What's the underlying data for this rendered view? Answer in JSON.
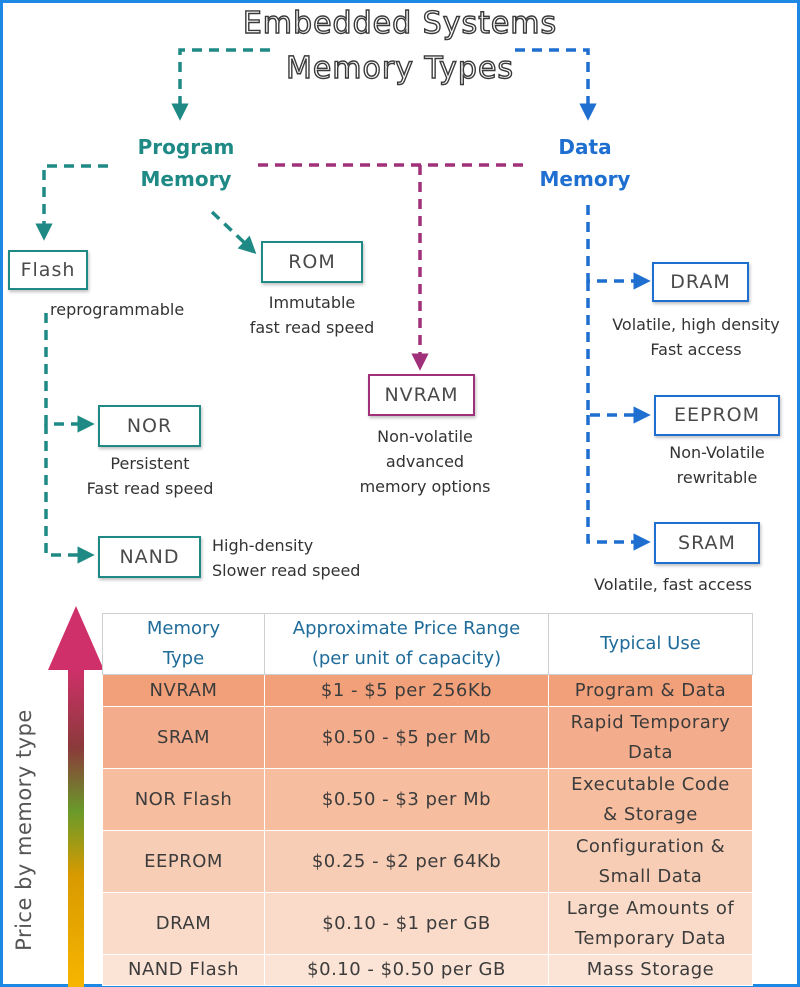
{
  "title": {
    "line1": "Embedded Systems",
    "line2": "Memory Types"
  },
  "categories": {
    "program": {
      "line1": "Program",
      "line2": "Memory",
      "color": "#1f8a85"
    },
    "nvram_branch": {
      "color": "#a0307a"
    },
    "data": {
      "line1": "Data",
      "line2": "Memory",
      "color": "#1e6fd0"
    }
  },
  "nodes": {
    "flash": {
      "label": "Flash",
      "desc": "reprogrammable"
    },
    "rom": {
      "label": "ROM",
      "desc_line1": "Immutable",
      "desc_line2": "fast read speed"
    },
    "nor": {
      "label": "NOR",
      "desc_line1": "Persistent",
      "desc_line2": "Fast read speed"
    },
    "nand": {
      "label": "NAND",
      "desc_line1": "High-density",
      "desc_line2": "Slower read speed"
    },
    "nvram": {
      "label": "NVRAM",
      "desc_line1": "Non-volatile",
      "desc_line2": "advanced",
      "desc_line3": "memory options"
    },
    "dram": {
      "label": "DRAM",
      "desc_line1": "Volatile, high density",
      "desc_line2": "Fast access"
    },
    "eeprom": {
      "label": "EEPROM",
      "desc_line1": "Non-Volatile",
      "desc_line2": "rewritable"
    },
    "sram": {
      "label": "SRAM",
      "desc": "Volatile, fast access"
    }
  },
  "price_axis_label": "Price by memory type",
  "table": {
    "headers": [
      {
        "line1": "Memory",
        "line2": "Type"
      },
      {
        "line1": "Approximate Price Range",
        "line2": "(per unit of capacity)"
      },
      {
        "line1": "Typical Use"
      }
    ],
    "rows": [
      {
        "type": "NVRAM",
        "price": "$1 - $5 per 256Kb",
        "use_line1": "Program & Data",
        "use_line2": "",
        "bg": "#f2a07a"
      },
      {
        "type": "SRAM",
        "price": "$0.50 - $5 per Mb",
        "use_line1": "Rapid Temporary",
        "use_line2": "Data",
        "bg": "#f4ad8c"
      },
      {
        "type": "NOR Flash",
        "price": "$0.50 - $3 per Mb",
        "use_line1": "Executable Code",
        "use_line2": "& Storage",
        "bg": "#f6bd9f"
      },
      {
        "type": "EEPROM",
        "price": "$0.25 - $2 per 64Kb",
        "use_line1": "Configuration &",
        "use_line2": "Small Data",
        "bg": "#f8cdb5"
      },
      {
        "type": "DRAM",
        "price": "$0.10 - $1 per GB",
        "use_line1": "Large Amounts of",
        "use_line2": "Temporary Data",
        "bg": "#fadbc9"
      },
      {
        "type": "NAND Flash",
        "price": "$0.10 - $0.50 per GB",
        "use_line1": "Mass Storage",
        "use_line2": "",
        "bg": "#fbe3d5"
      }
    ]
  }
}
